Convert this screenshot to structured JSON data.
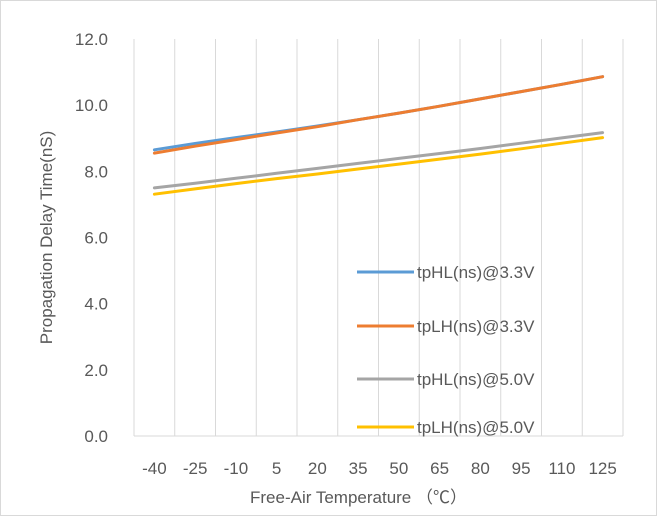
{
  "chart_data": {
    "type": "line",
    "title": "",
    "xlabel": "Free-Air Temperature （℃）",
    "ylabel": "Propagation Delay Time(nS)",
    "categories": [
      "-40",
      "-25",
      "-10",
      "5",
      "20",
      "35",
      "50",
      "65",
      "80",
      "95",
      "110",
      "125"
    ],
    "y_ticks": [
      "0.0",
      "2.0",
      "4.0",
      "6.0",
      "8.0",
      "10.0",
      "12.0"
    ],
    "ylim": [
      0,
      12
    ],
    "grid": "vertical",
    "legend_position": "bottom-right",
    "series": [
      {
        "name": "tpHL(ns)@3.3V",
        "color": "#5b9bd5",
        "values": [
          8.65,
          8.84,
          9.02,
          9.19,
          9.37,
          9.56,
          9.76,
          9.97,
          10.19,
          10.41,
          10.63,
          10.86
        ]
      },
      {
        "name": "tpLH(ns)@3.3V",
        "color": "#ed7d31",
        "values": [
          8.55,
          8.76,
          8.96,
          9.16,
          9.35,
          9.56,
          9.76,
          9.97,
          10.19,
          10.41,
          10.63,
          10.86
        ]
      },
      {
        "name": "tpHL(ns)@5.0V",
        "color": "#a5a5a5",
        "values": [
          7.5,
          7.64,
          7.79,
          7.94,
          8.09,
          8.24,
          8.39,
          8.54,
          8.69,
          8.85,
          9.01,
          9.17
        ]
      },
      {
        "name": "tpLH(ns)@5.0V",
        "color": "#ffc000",
        "values": [
          7.31,
          7.47,
          7.63,
          7.78,
          7.92,
          8.07,
          8.22,
          8.37,
          8.52,
          8.68,
          8.85,
          9.02
        ]
      }
    ]
  }
}
